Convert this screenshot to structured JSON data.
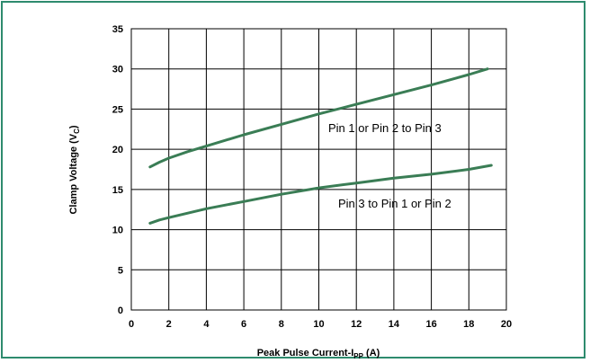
{
  "chart_data": {
    "type": "line",
    "xlabel_main": "Peak Pulse Current-I",
    "xlabel_sub": "PP",
    "xlabel_tail": " (A)",
    "ylabel_main": "Clamp Voltage (V",
    "ylabel_sub": "C",
    "ylabel_tail": ")",
    "xlim": [
      0,
      20
    ],
    "ylim": [
      0,
      35
    ],
    "xticks": [
      0,
      2,
      4,
      6,
      8,
      10,
      12,
      14,
      16,
      18,
      20
    ],
    "yticks": [
      0,
      5,
      10,
      15,
      20,
      25,
      30,
      35
    ],
    "grid": true,
    "line_color": "#3a7d55",
    "series": [
      {
        "annotation": "Pin 1 or Pin 2 to Pin 3",
        "x": [
          1,
          1.5,
          2,
          3,
          4,
          6,
          8,
          10,
          12,
          14,
          16,
          18,
          19
        ],
        "y": [
          17.8,
          18.4,
          18.9,
          19.7,
          20.4,
          21.8,
          23.1,
          24.4,
          25.6,
          26.8,
          28.0,
          29.3,
          30.0
        ]
      },
      {
        "annotation": "Pin 3 to Pin 1 or Pin 2",
        "x": [
          1,
          1.5,
          2,
          4,
          6,
          8,
          10,
          12,
          14,
          16,
          18,
          19.2
        ],
        "y": [
          10.8,
          11.2,
          11.5,
          12.6,
          13.5,
          14.4,
          15.2,
          15.8,
          16.4,
          16.9,
          17.5,
          18.0
        ]
      }
    ]
  }
}
